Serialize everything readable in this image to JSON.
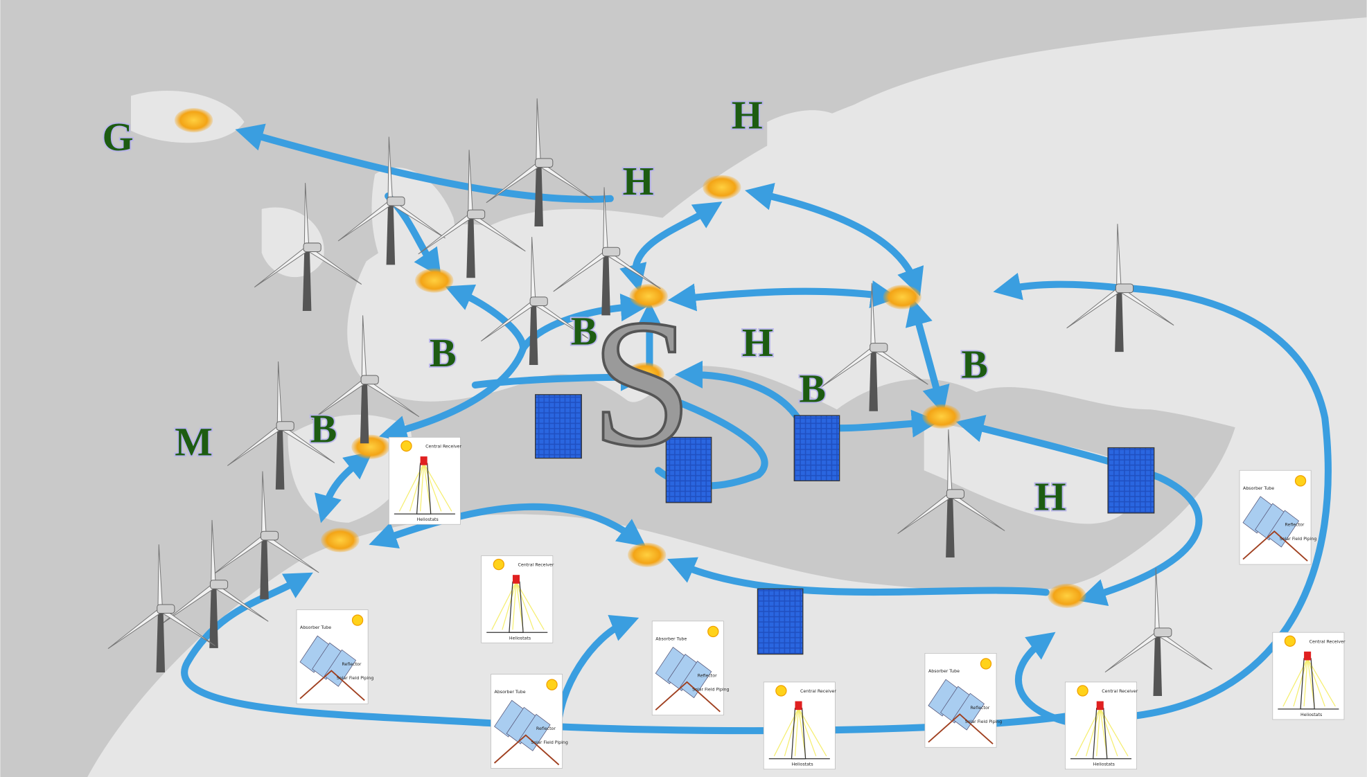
{
  "labels": [
    "G",
    "H",
    "H",
    "B",
    "B",
    "H",
    "B",
    "B",
    "M",
    "B",
    "H"
  ],
  "center_label": "S",
  "tower_icon": {
    "receiver": "Central Receiver",
    "field": "Heliostats"
  },
  "trough_icon": {
    "tube": "Absorber Tube",
    "reflector": "Reflector",
    "piping": "Solar Field Piping"
  }
}
